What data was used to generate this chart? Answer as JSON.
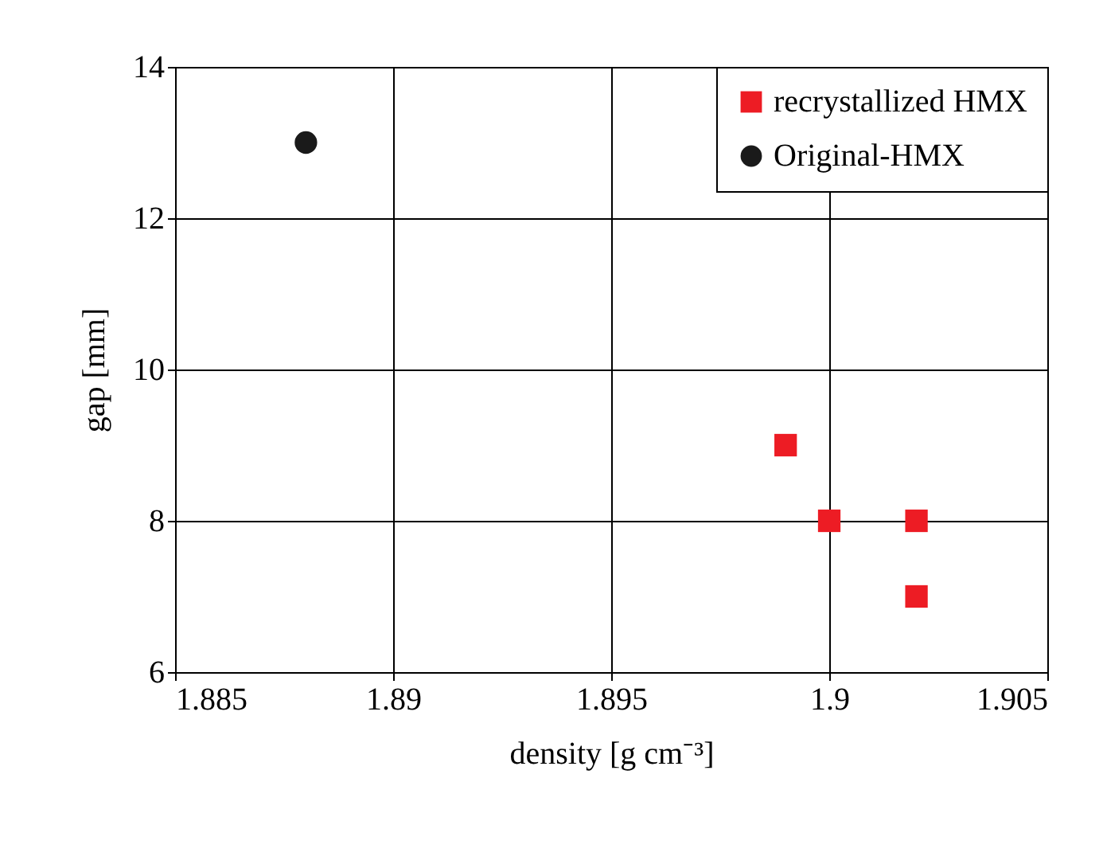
{
  "chart_data": {
    "type": "scatter",
    "xlabel": "density [g cm⁻³]",
    "ylabel": "gap [mm]",
    "xlim": [
      1.885,
      1.905
    ],
    "xticks": [
      1.885,
      1.89,
      1.895,
      1.9,
      1.905
    ],
    "ylim": [
      6,
      14
    ],
    "yticks": [
      6,
      8,
      10,
      12,
      14
    ],
    "grid": true,
    "legend": "top right",
    "series": [
      {
        "name": "recrystallized HMX",
        "color": "#ed1c24",
        "marker": "square",
        "x": [
          1.899,
          1.9,
          1.902,
          1.902
        ],
        "values": [
          9,
          8,
          8,
          7
        ]
      },
      {
        "name": "Original-HMX",
        "color": "#1a1a1a",
        "marker": "circle",
        "x": [
          1.888
        ],
        "values": [
          13
        ]
      }
    ]
  }
}
